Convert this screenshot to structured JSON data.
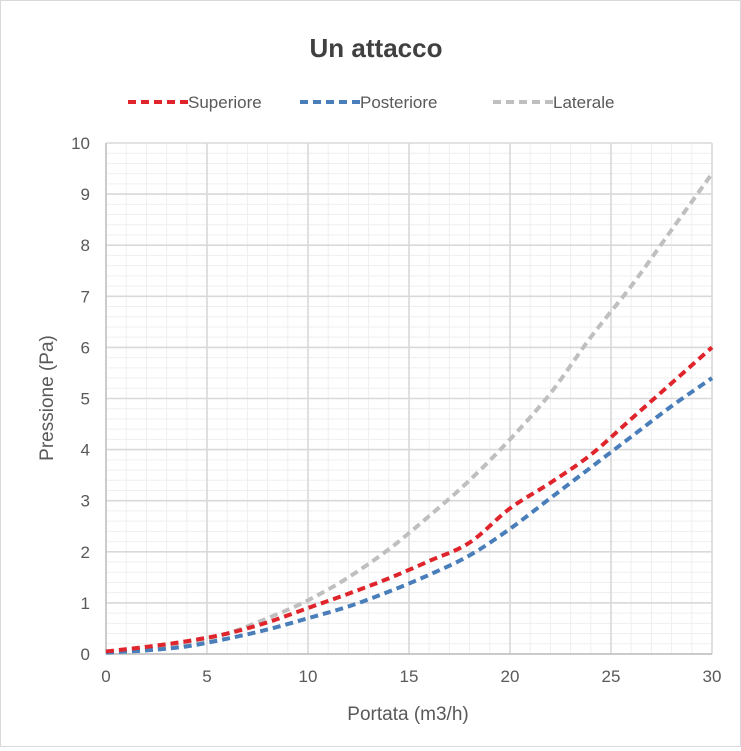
{
  "chart_data": {
    "type": "line",
    "title": "Un attacco",
    "xlabel": "Portata (m3/h)",
    "ylabel": "Pressione (Pa)",
    "xlim": [
      0,
      30
    ],
    "ylim": [
      0,
      10
    ],
    "x_ticks": [
      "0",
      "5",
      "10",
      "15",
      "20",
      "25",
      "30"
    ],
    "y_ticks": [
      "0",
      "1",
      "2",
      "3",
      "4",
      "5",
      "6",
      "7",
      "8",
      "9",
      "10"
    ],
    "grid": true,
    "minor_grid": true,
    "legend_position": "top",
    "line_style": "dashed",
    "series": [
      {
        "name": "Superiore",
        "color": "#e0242b",
        "x": [
          0,
          2,
          4,
          6,
          8,
          10,
          12,
          14,
          16,
          18,
          20,
          22,
          24,
          26,
          28,
          30
        ],
        "y": [
          0.05,
          0.14,
          0.25,
          0.4,
          0.62,
          0.9,
          1.18,
          1.48,
          1.82,
          2.18,
          2.85,
          3.35,
          3.9,
          4.6,
          5.3,
          6.0
        ]
      },
      {
        "name": "Posteriore",
        "color": "#4a7ebb",
        "x": [
          0,
          2,
          4,
          6,
          8,
          10,
          12,
          14,
          16,
          18,
          20,
          22,
          24,
          26,
          28,
          30
        ],
        "y": [
          0.03,
          0.07,
          0.15,
          0.3,
          0.48,
          0.7,
          0.93,
          1.22,
          1.55,
          1.93,
          2.45,
          3.05,
          3.65,
          4.25,
          4.85,
          5.4
        ]
      },
      {
        "name": "Laterale",
        "color": "#bfbfbf",
        "x": [
          0,
          2,
          4,
          6,
          8,
          10,
          12,
          14,
          16,
          18,
          20,
          22,
          24,
          26,
          28,
          30
        ],
        "y": [
          0.02,
          0.08,
          0.2,
          0.4,
          0.7,
          1.05,
          1.5,
          2.05,
          2.7,
          3.4,
          4.2,
          5.1,
          6.2,
          7.2,
          8.3,
          9.4
        ]
      }
    ]
  }
}
